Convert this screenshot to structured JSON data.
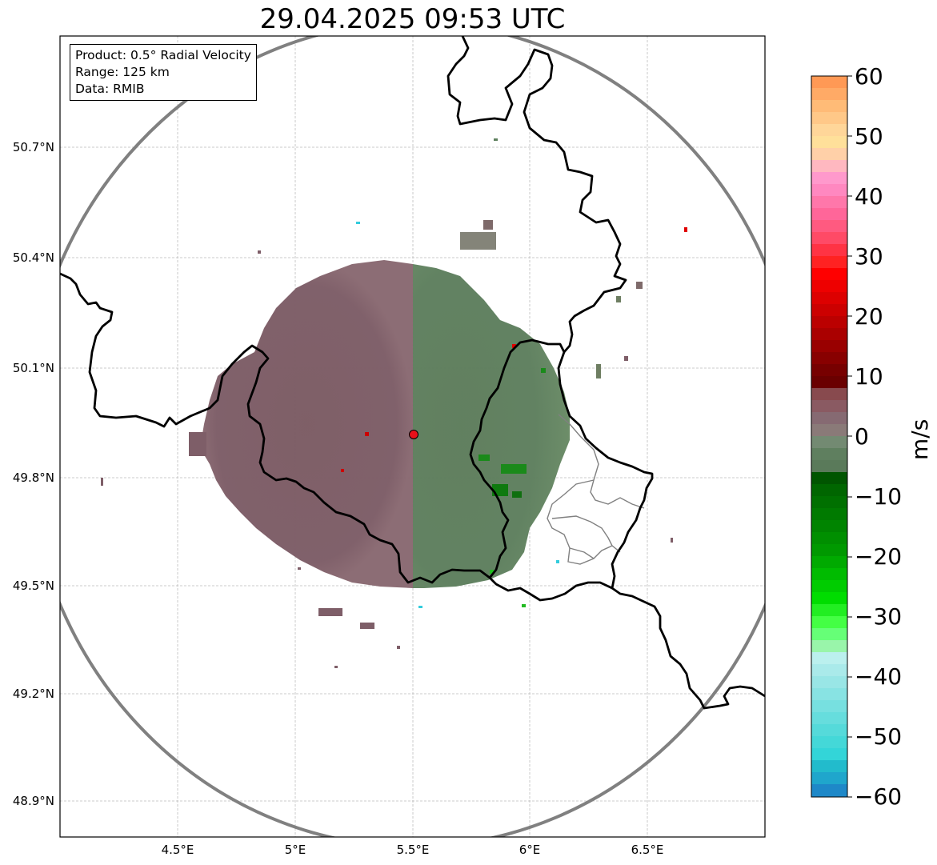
{
  "title": "29.04.2025 09:53 UTC",
  "info": {
    "product": "Product: 0.5° Radial Velocity",
    "range": "Range: 125 km",
    "data": "Data: RMIB"
  },
  "latitude_labels": [
    "50.7°N",
    "50.4°N",
    "50.1°N",
    "49.8°N",
    "49.5°N",
    "49.2°N",
    "48.9°N"
  ],
  "longitude_labels": [
    "4.5°E",
    "5°E",
    "5.5°E",
    "6°E",
    "6.5°E"
  ],
  "colorbar": {
    "unit_label": "m/s",
    "ticks": [
      "60",
      "50",
      "40",
      "30",
      "20",
      "10",
      "0",
      "−10",
      "−20",
      "−30",
      "−40",
      "−50",
      "−60"
    ],
    "range": [
      -60,
      60
    ]
  },
  "radar_site": {
    "lon": 5.505,
    "lat": 49.914
  },
  "colors": {
    "approaching_green": "#5e7f5e",
    "receding_mauve": "#7e5e66",
    "grid": "#bbbbbb",
    "range_ring": "#808080",
    "border": "#000000",
    "site_marker": "#e8101a"
  }
}
